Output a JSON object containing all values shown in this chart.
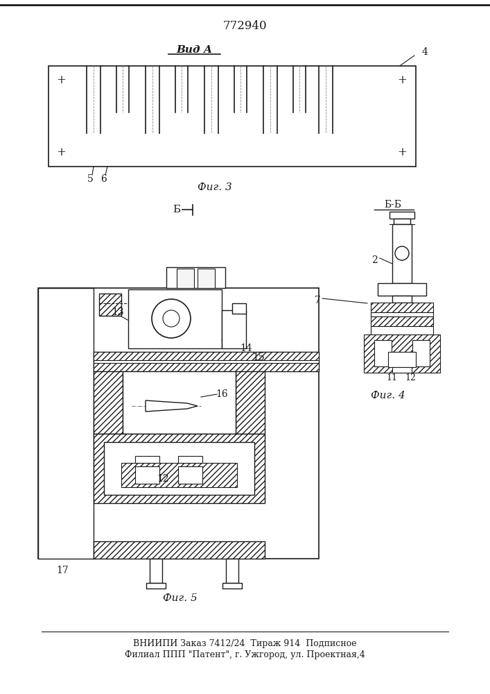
{
  "title": "772940",
  "fig3_label": "Фиг. 3",
  "fig4_label": "Фиг. 4",
  "fig5_label": "Фиг. 5",
  "vid_a_label": "Вид А",
  "b_label": "Б",
  "bb_label": "Б-Б",
  "footer_line1": "ВНИИПИ Заказ 7412/24  Тираж 914  Подписное",
  "footer_line2": "Филиал ППП \"Патент\", г. Ужгород, ул. Проектная,4",
  "bg_color": "#ffffff",
  "line_color": "#1a1a1a"
}
